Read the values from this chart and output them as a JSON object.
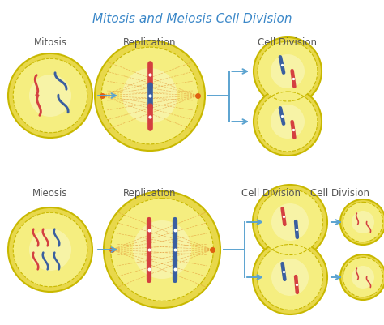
{
  "title": "Mitosis and Meiosis Cell Division",
  "title_color": "#3a87c8",
  "title_fontsize": 11,
  "background_color": "#ffffff",
  "cell_fill_outer": "#e8d84a",
  "cell_fill_inner": "#f5ee80",
  "cell_fill_center": "#faf7c0",
  "cell_edge_color": "#c8b800",
  "arrow_color": "#5ba3d0",
  "red_chrom": "#d44040",
  "blue_chrom": "#3a5fa0",
  "spindle_color": "#e08828",
  "spindle_pole_color": "#e06010",
  "label_color": "#555555",
  "label_fontsize": 8.5,
  "mitosis_label": "Mitosis",
  "meiosis_label": "Mieosis",
  "replication_label": "Replication",
  "cell_division_label": "Cell Division",
  "figsize": [
    4.74,
    4.01
  ],
  "dpi": 100
}
